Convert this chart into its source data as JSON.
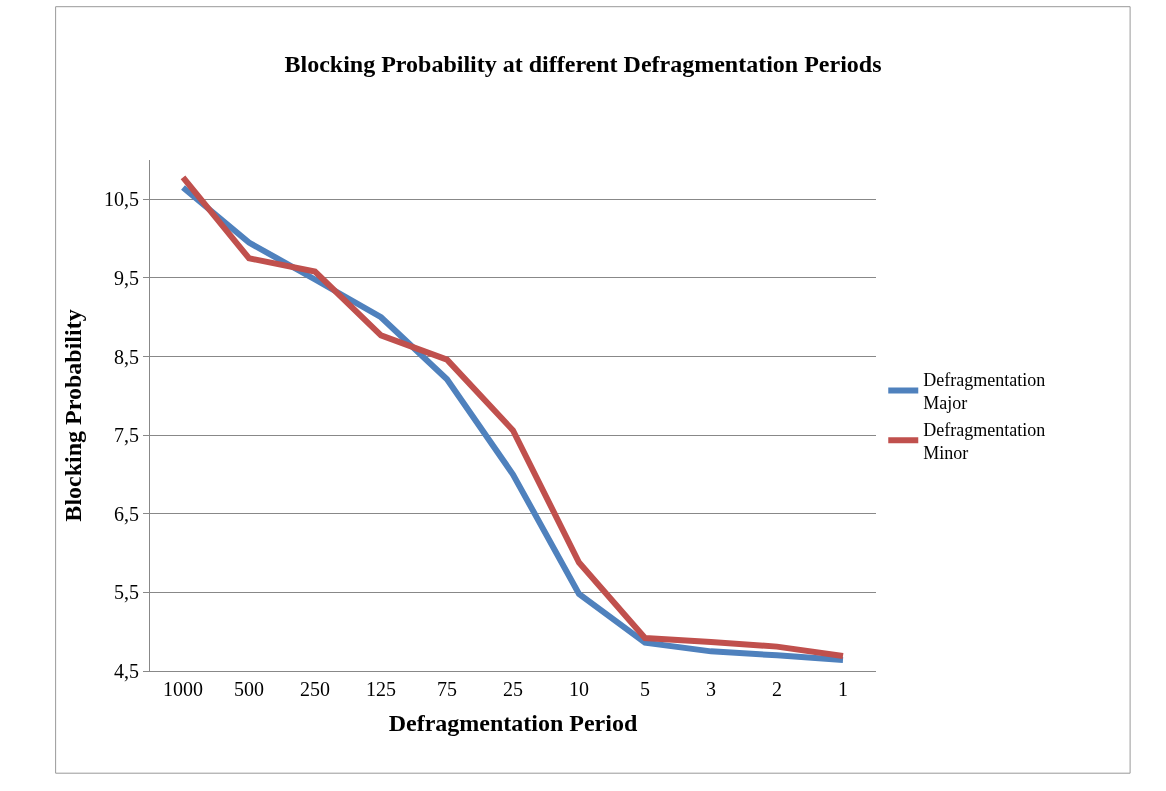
{
  "chart_data": {
    "type": "line",
    "title": "Blocking Probability at different Defragmentation Periods",
    "xlabel": "Defragmentation Period",
    "ylabel": "Blocking Probability",
    "categories": [
      "1000",
      "500",
      "250",
      "125",
      "75",
      "25",
      "10",
      "5",
      "3",
      "2",
      "1"
    ],
    "series": [
      {
        "name": "Defragmentation Major",
        "color": "#4f81bd",
        "values": [
          10.65,
          9.95,
          9.48,
          9.0,
          8.21,
          7.0,
          5.48,
          4.86,
          4.75,
          4.7,
          4.64
        ]
      },
      {
        "name": "Defragmentation Minor",
        "color": "#c0504d",
        "values": [
          10.78,
          9.75,
          9.58,
          8.77,
          8.46,
          7.56,
          5.88,
          4.92,
          4.87,
          4.81,
          4.69
        ]
      }
    ],
    "ylim": [
      4.5,
      11
    ],
    "yticks": [
      {
        "value": 4.5,
        "label": "4,5"
      },
      {
        "value": 5.5,
        "label": "5,5"
      },
      {
        "value": 6.5,
        "label": "6,5"
      },
      {
        "value": 7.5,
        "label": "7,5"
      },
      {
        "value": 8.5,
        "label": "8,5"
      },
      {
        "value": 9.5,
        "label": "9,5"
      },
      {
        "value": 10.5,
        "label": "10,5"
      }
    ],
    "grid": "y",
    "legend": "right",
    "marker": "none",
    "line_style": "solid"
  }
}
